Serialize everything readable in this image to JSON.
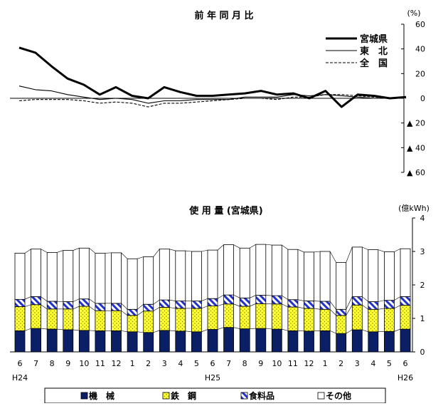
{
  "chart_data": [
    {
      "type": "line",
      "title": "前 年 同 月 比",
      "unit_label": "(%)",
      "ylim": [
        -60,
        60
      ],
      "y_ticks": [
        {
          "value": 60,
          "label": "60"
        },
        {
          "value": 40,
          "label": "40"
        },
        {
          "value": 20,
          "label": "20"
        },
        {
          "value": 0,
          "label": "0"
        },
        {
          "value": -20,
          "label": "▲ 20"
        },
        {
          "value": -40,
          "label": "▲ 40"
        },
        {
          "value": -60,
          "label": "▲ 60"
        }
      ],
      "series": [
        {
          "name": "宮城県",
          "style": "thick",
          "values": [
            41,
            37,
            26,
            16,
            11,
            3,
            9,
            2,
            0,
            9,
            5,
            2,
            2,
            3,
            4,
            6,
            3,
            4,
            0,
            6,
            -7,
            3,
            2,
            0,
            1
          ]
        },
        {
          "name": "東　北",
          "style": "thin",
          "values": [
            10,
            7,
            6,
            3,
            1,
            -1,
            0,
            -1,
            -4,
            -2,
            -2,
            -1,
            -1,
            -1,
            1,
            1,
            1,
            3,
            2,
            3,
            2,
            1,
            0,
            0,
            1
          ]
        },
        {
          "name": "全　国",
          "style": "dashed",
          "values": [
            -2,
            -1,
            -1,
            -1,
            -2,
            -4,
            -3,
            -4,
            -7,
            -4,
            -4,
            -3,
            -2,
            -1,
            0,
            0,
            -1,
            1,
            1,
            3,
            3,
            2,
            1,
            0,
            0
          ]
        }
      ]
    },
    {
      "type": "bar",
      "stacked": true,
      "title": "使 用 量 (宮城県)",
      "unit_label": "(億kWh)",
      "ylim": [
        0,
        4
      ],
      "y_ticks": [
        0,
        1,
        2,
        3,
        4
      ],
      "categories": [
        "6",
        "7",
        "8",
        "9",
        "10",
        "11",
        "12",
        "1",
        "2",
        "3",
        "4",
        "5",
        "6",
        "7",
        "8",
        "9",
        "10",
        "11",
        "12",
        "1",
        "2",
        "3",
        "4",
        "5",
        "6"
      ],
      "year_labels": [
        {
          "label": "H24",
          "index": 0
        },
        {
          "label": "H25",
          "index": 12
        },
        {
          "label": "H26",
          "index": 24
        }
      ],
      "series": [
        {
          "name": "機　械",
          "pattern": "solid-navy",
          "values": [
            0.63,
            0.7,
            0.68,
            0.66,
            0.64,
            0.63,
            0.63,
            0.6,
            0.58,
            0.64,
            0.62,
            0.6,
            0.67,
            0.73,
            0.69,
            0.7,
            0.68,
            0.63,
            0.62,
            0.63,
            0.55,
            0.66,
            0.6,
            0.61,
            0.68
          ]
        },
        {
          "name": "鉄　鋼",
          "pattern": "yellow-dots",
          "values": [
            0.72,
            0.71,
            0.6,
            0.62,
            0.72,
            0.6,
            0.6,
            0.49,
            0.64,
            0.69,
            0.68,
            0.7,
            0.7,
            0.7,
            0.67,
            0.74,
            0.75,
            0.71,
            0.68,
            0.64,
            0.54,
            0.74,
            0.67,
            0.69,
            0.71
          ]
        },
        {
          "name": "食料品",
          "pattern": "blue-hatch",
          "values": [
            0.22,
            0.24,
            0.23,
            0.22,
            0.22,
            0.22,
            0.22,
            0.18,
            0.2,
            0.22,
            0.22,
            0.22,
            0.22,
            0.27,
            0.25,
            0.25,
            0.25,
            0.22,
            0.22,
            0.24,
            0.18,
            0.25,
            0.23,
            0.24,
            0.26
          ]
        },
        {
          "name": "その他",
          "pattern": "white",
          "values": [
            1.38,
            1.42,
            1.46,
            1.53,
            1.52,
            1.5,
            1.51,
            1.51,
            1.42,
            1.52,
            1.5,
            1.48,
            1.45,
            1.5,
            1.49,
            1.52,
            1.51,
            1.5,
            1.46,
            1.49,
            1.4,
            1.48,
            1.55,
            1.45,
            1.43
          ]
        }
      ],
      "legend_position": "bottom"
    }
  ]
}
